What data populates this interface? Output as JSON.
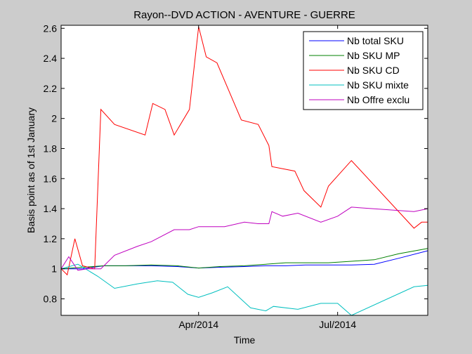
{
  "chart_data": {
    "type": "line",
    "title": "Rayon--DVD ACTION - AVENTURE - GUERRE",
    "xlabel": "Time",
    "ylabel": "Basis point as of 1st January",
    "xlim": [
      "2014-01-01",
      "2014-08-29"
    ],
    "ylim": [
      0.69,
      2.62
    ],
    "xticks": [
      {
        "date": "2014-04-01",
        "label": "Apr/2014"
      },
      {
        "date": "2014-07-01",
        "label": "Jul/2014"
      }
    ],
    "yticks": [
      0.8,
      1,
      1.2,
      1.4,
      1.6,
      1.8,
      2,
      2.2,
      2.4,
      2.6
    ],
    "ytick_labels": [
      "0.8",
      "1",
      "1.2",
      "1.4",
      "1.6",
      "1.8",
      "2",
      "2.2",
      "2.4",
      "2.6"
    ],
    "grid": false,
    "legend_position": "top-right",
    "series": [
      {
        "name": "Nb total SKU",
        "color": "#0000ff",
        "x": [
          "2014-01-01",
          "2014-01-15",
          "2014-01-29",
          "2014-02-12",
          "2014-03-01",
          "2014-03-18",
          "2014-04-01",
          "2014-04-15",
          "2014-05-01",
          "2014-05-15",
          "2014-05-28",
          "2014-06-10",
          "2014-06-25",
          "2014-07-10",
          "2014-07-25",
          "2014-08-10",
          "2014-08-29"
        ],
        "values": [
          1.0,
          1.0,
          1.02,
          1.02,
          1.02,
          1.015,
          1.005,
          1.01,
          1.015,
          1.02,
          1.02,
          1.025,
          1.025,
          1.025,
          1.03,
          1.07,
          1.12
        ]
      },
      {
        "name": "Nb SKU MP",
        "color": "#008000",
        "x": [
          "2014-01-01",
          "2014-01-15",
          "2014-01-29",
          "2014-02-12",
          "2014-03-01",
          "2014-03-18",
          "2014-04-01",
          "2014-04-15",
          "2014-05-01",
          "2014-05-15",
          "2014-05-28",
          "2014-06-10",
          "2014-06-25",
          "2014-07-10",
          "2014-07-25",
          "2014-08-10",
          "2014-08-29"
        ],
        "values": [
          1.0,
          1.01,
          1.02,
          1.02,
          1.025,
          1.02,
          1.005,
          1.015,
          1.02,
          1.03,
          1.04,
          1.04,
          1.04,
          1.05,
          1.06,
          1.1,
          1.135
        ]
      },
      {
        "name": "Nb SKU CD",
        "color": "#ff0000",
        "x": [
          "2014-01-01",
          "2014-01-05",
          "2014-01-10",
          "2014-01-15",
          "2014-01-23",
          "2014-01-27",
          "2014-02-05",
          "2014-02-25",
          "2014-03-02",
          "2014-03-10",
          "2014-03-16",
          "2014-03-26",
          "2014-04-01",
          "2014-04-06",
          "2014-04-13",
          "2014-04-29",
          "2014-05-10",
          "2014-05-17",
          "2014-05-19",
          "2014-06-03",
          "2014-06-09",
          "2014-06-20",
          "2014-06-25",
          "2014-07-10",
          "2014-08-20",
          "2014-08-25",
          "2014-08-29"
        ],
        "values": [
          1.0,
          0.96,
          1.2,
          1.02,
          1.0,
          2.06,
          1.96,
          1.89,
          2.1,
          2.06,
          1.89,
          2.06,
          2.61,
          2.41,
          2.37,
          1.99,
          1.96,
          1.82,
          1.68,
          1.65,
          1.52,
          1.41,
          1.55,
          1.72,
          1.27,
          1.31,
          1.31
        ]
      },
      {
        "name": "Nb SKU mixte",
        "color": "#00bfbf",
        "x": [
          "2014-01-01",
          "2014-01-12",
          "2014-01-25",
          "2014-02-05",
          "2014-02-20",
          "2014-03-05",
          "2014-03-15",
          "2014-03-25",
          "2014-04-01",
          "2014-04-10",
          "2014-04-20",
          "2014-05-05",
          "2014-05-15",
          "2014-05-20",
          "2014-06-05",
          "2014-06-20",
          "2014-07-01",
          "2014-07-10",
          "2014-08-20",
          "2014-08-29"
        ],
        "values": [
          1.0,
          1.03,
          0.95,
          0.87,
          0.9,
          0.92,
          0.91,
          0.83,
          0.81,
          0.84,
          0.88,
          0.74,
          0.72,
          0.75,
          0.73,
          0.77,
          0.77,
          0.69,
          0.88,
          0.89
        ]
      },
      {
        "name": "Nb Offre exclu",
        "color": "#bf00bf",
        "x": [
          "2014-01-01",
          "2014-01-06",
          "2014-01-12",
          "2014-01-18",
          "2014-01-27",
          "2014-02-05",
          "2014-02-20",
          "2014-03-01",
          "2014-03-16",
          "2014-03-26",
          "2014-04-01",
          "2014-04-10",
          "2014-04-18",
          "2014-05-01",
          "2014-05-10",
          "2014-05-17",
          "2014-05-19",
          "2014-05-26",
          "2014-06-05",
          "2014-06-20",
          "2014-07-01",
          "2014-07-10",
          "2014-08-20",
          "2014-08-29"
        ],
        "values": [
          1.0,
          1.08,
          0.99,
          1.0,
          1.0,
          1.09,
          1.15,
          1.18,
          1.26,
          1.26,
          1.28,
          1.28,
          1.28,
          1.31,
          1.3,
          1.3,
          1.38,
          1.35,
          1.37,
          1.31,
          1.35,
          1.41,
          1.38,
          1.4
        ]
      }
    ]
  }
}
